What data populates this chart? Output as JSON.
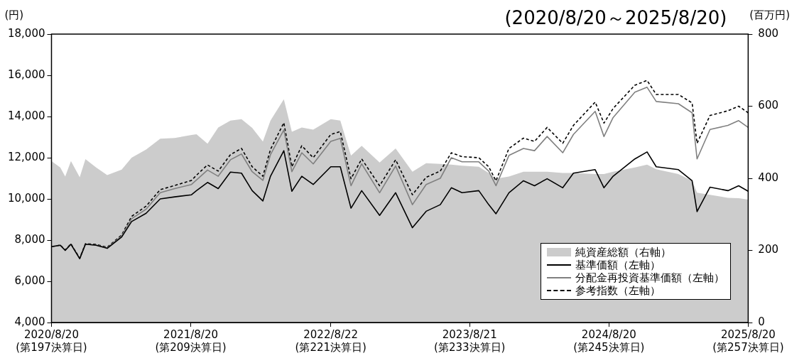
{
  "chart_data": {
    "type": "line",
    "title": "(2020/8/20～2025/8/20)",
    "ylabel": "(円)",
    "y2label": "(百万円)",
    "x": [
      "2020-08-20",
      "2020-09-12",
      "2020-09-25",
      "2020-10-10",
      "2020-11-02",
      "2020-11-17",
      "2020-12-15",
      "2021-01-13",
      "2021-02-20",
      "2021-03-18",
      "2021-04-25",
      "2021-06-01",
      "2021-07-09",
      "2021-08-22",
      "2021-09-04",
      "2021-10-03",
      "2021-10-31",
      "2021-12-02",
      "2021-12-31",
      "2022-01-28",
      "2022-02-25",
      "2022-03-17",
      "2022-04-21",
      "2022-05-12",
      "2022-06-07",
      "2022-07-07",
      "2022-08-22",
      "2022-09-16",
      "2022-10-14",
      "2022-11-11",
      "2022-12-28",
      "2023-02-08",
      "2023-03-24",
      "2023-04-29",
      "2023-06-05",
      "2023-07-04",
      "2023-08-01",
      "2023-09-14",
      "2023-10-10",
      "2023-10-29",
      "2023-12-02",
      "2024-01-09",
      "2024-02-07",
      "2024-03-11",
      "2024-04-21",
      "2024-05-19",
      "2024-07-15",
      "2024-08-07",
      "2024-08-31",
      "2024-10-27",
      "2024-11-28",
      "2024-12-22",
      "2025-02-18",
      "2025-03-26",
      "2025-04-08",
      "2025-05-12",
      "2025-06-28",
      "2025-07-26",
      "2025-08-20"
    ],
    "series": [
      {
        "name": "純資産総額（右軸）",
        "type": "area",
        "axis": "y2",
        "color": "#cccccc",
        "values": [
          448,
          430,
          405,
          448,
          403,
          453,
          430,
          409,
          424,
          457,
          480,
          510,
          512,
          520,
          522,
          496,
          541,
          560,
          564,
          540,
          502,
          560,
          619,
          529,
          541,
          535,
          564,
          560,
          463,
          490,
          444,
          483,
          418,
          442,
          440,
          438,
          435,
          432,
          415,
          399,
          405,
          418,
          418,
          418,
          415,
          415,
          412,
          412,
          418,
          430,
          438,
          425,
          412,
          393,
          360,
          354,
          346,
          345,
          341
        ]
      },
      {
        "name": "基準価額（左軸）",
        "type": "line",
        "color": "#000000",
        "line_style": "solid",
        "values": [
          7680,
          7750,
          7500,
          7800,
          7100,
          7800,
          7750,
          7600,
          8150,
          8900,
          9300,
          10000,
          10100,
          10200,
          10400,
          10800,
          10500,
          11300,
          11250,
          10400,
          9900,
          11100,
          12340,
          10370,
          11100,
          10700,
          11560,
          11560,
          9550,
          10400,
          9200,
          10300,
          8600,
          9400,
          9720,
          10540,
          10300,
          10400,
          9720,
          9280,
          10300,
          10880,
          10640,
          10980,
          10540,
          11250,
          11420,
          10540,
          11100,
          11940,
          12280,
          11560,
          11420,
          10880,
          9380,
          10570,
          10400,
          10640,
          10370
        ]
      },
      {
        "name": "分配金再投資基準価額（左軸）",
        "type": "line",
        "color": "#808080",
        "line_style": "solid",
        "values": [
          7680,
          7750,
          7500,
          7800,
          7100,
          7800,
          7760,
          7620,
          8200,
          9040,
          9500,
          10300,
          10500,
          10700,
          10920,
          11400,
          11100,
          11900,
          12180,
          11320,
          10900,
          12150,
          13350,
          11320,
          12240,
          11700,
          12790,
          12940,
          10640,
          11700,
          10300,
          11600,
          9720,
          10700,
          11000,
          12000,
          11800,
          11800,
          11350,
          10640,
          12110,
          12450,
          12340,
          13030,
          12240,
          13130,
          14250,
          13030,
          13950,
          15180,
          15420,
          14730,
          14620,
          14180,
          11940,
          13370,
          13570,
          13800,
          13470
        ]
      },
      {
        "name": "参考指数（左軸）",
        "type": "line",
        "color": "#000000",
        "line_style": "dashed",
        "values": [
          7680,
          7760,
          7520,
          7820,
          7120,
          7830,
          7790,
          7650,
          8250,
          9150,
          9650,
          10450,
          10650,
          10900,
          11150,
          11650,
          11350,
          12150,
          12450,
          11560,
          11100,
          12400,
          13700,
          11560,
          12580,
          12000,
          13130,
          13270,
          10980,
          11940,
          10640,
          11900,
          10200,
          11050,
          11350,
          12240,
          12050,
          12000,
          11560,
          10880,
          12450,
          12950,
          12790,
          13470,
          12700,
          13570,
          14700,
          13680,
          14390,
          15520,
          15750,
          15070,
          15070,
          14660,
          12700,
          14050,
          14280,
          14500,
          14180
        ]
      }
    ],
    "xlim": [
      "2020-08-20",
      "2025-08-20"
    ],
    "xticks": [
      {
        "value": "2020-08-20",
        "label": "2020/8/20\n(第197決算日)"
      },
      {
        "value": "2021-08-20",
        "label": "2021/8/20\n(第209決算日)"
      },
      {
        "value": "2022-08-22",
        "label": "2022/8/22\n(第221決算日)"
      },
      {
        "value": "2023-08-21",
        "label": "2023/8/21\n(第233決算日)"
      },
      {
        "value": "2024-08-20",
        "label": "2024/8/20\n(第245決算日)"
      },
      {
        "value": "2025-08-20",
        "label": "2025/8/20\n(第257決算日)"
      }
    ],
    "ylim": [
      4000,
      18000
    ],
    "yticks": [
      {
        "value": 4000,
        "label": "4,000"
      },
      {
        "value": 6000,
        "label": "6,000"
      },
      {
        "value": 8000,
        "label": "8,000"
      },
      {
        "value": 10000,
        "label": "10,000"
      },
      {
        "value": 12000,
        "label": "12,000"
      },
      {
        "value": 14000,
        "label": "14,000"
      },
      {
        "value": 16000,
        "label": "16,000"
      },
      {
        "value": 18000,
        "label": "18,000"
      }
    ],
    "y2lim": [
      0,
      800
    ],
    "y2ticks": [
      0,
      200,
      400,
      600,
      800
    ],
    "grid": false,
    "legend": "bottom right",
    "marker": "none"
  }
}
